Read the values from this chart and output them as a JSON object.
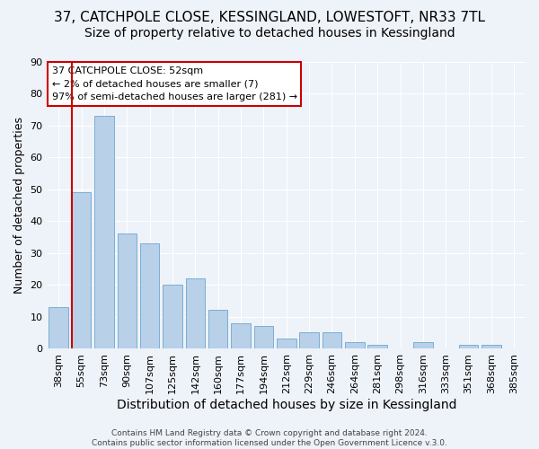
{
  "title": "37, CATCHPOLE CLOSE, KESSINGLAND, LOWESTOFT, NR33 7TL",
  "subtitle": "Size of property relative to detached houses in Kessingland",
  "bar_labels": [
    "38sqm",
    "55sqm",
    "73sqm",
    "90sqm",
    "107sqm",
    "125sqm",
    "142sqm",
    "160sqm",
    "177sqm",
    "194sqm",
    "212sqm",
    "229sqm",
    "246sqm",
    "264sqm",
    "281sqm",
    "298sqm",
    "316sqm",
    "333sqm",
    "351sqm",
    "368sqm",
    "385sqm"
  ],
  "bar_values": [
    13,
    49,
    73,
    36,
    33,
    20,
    22,
    12,
    8,
    7,
    3,
    5,
    5,
    2,
    1,
    0,
    2,
    0,
    1,
    1,
    0
  ],
  "bar_color": "#b8d0e8",
  "bar_edge_color": "#7aafd4",
  "ylabel": "Number of detached properties",
  "xlabel": "Distribution of detached houses by size in Kessingland",
  "ylim": [
    0,
    90
  ],
  "yticks": [
    0,
    10,
    20,
    30,
    40,
    50,
    60,
    70,
    80,
    90
  ],
  "annotation_line1": "37 CATCHPOLE CLOSE: 52sqm",
  "annotation_line2": "← 2% of detached houses are smaller (7)",
  "annotation_line3": "97% of semi-detached houses are larger (281) →",
  "vline_color": "#cc0000",
  "background_color": "#eef2f9",
  "grid_color": "#ffffff",
  "title_fontsize": 11,
  "subtitle_fontsize": 10,
  "xlabel_fontsize": 10,
  "ylabel_fontsize": 9,
  "tick_fontsize": 8,
  "footer_text": "Contains HM Land Registry data © Crown copyright and database right 2024.\nContains public sector information licensed under the Open Government Licence v.3.0."
}
